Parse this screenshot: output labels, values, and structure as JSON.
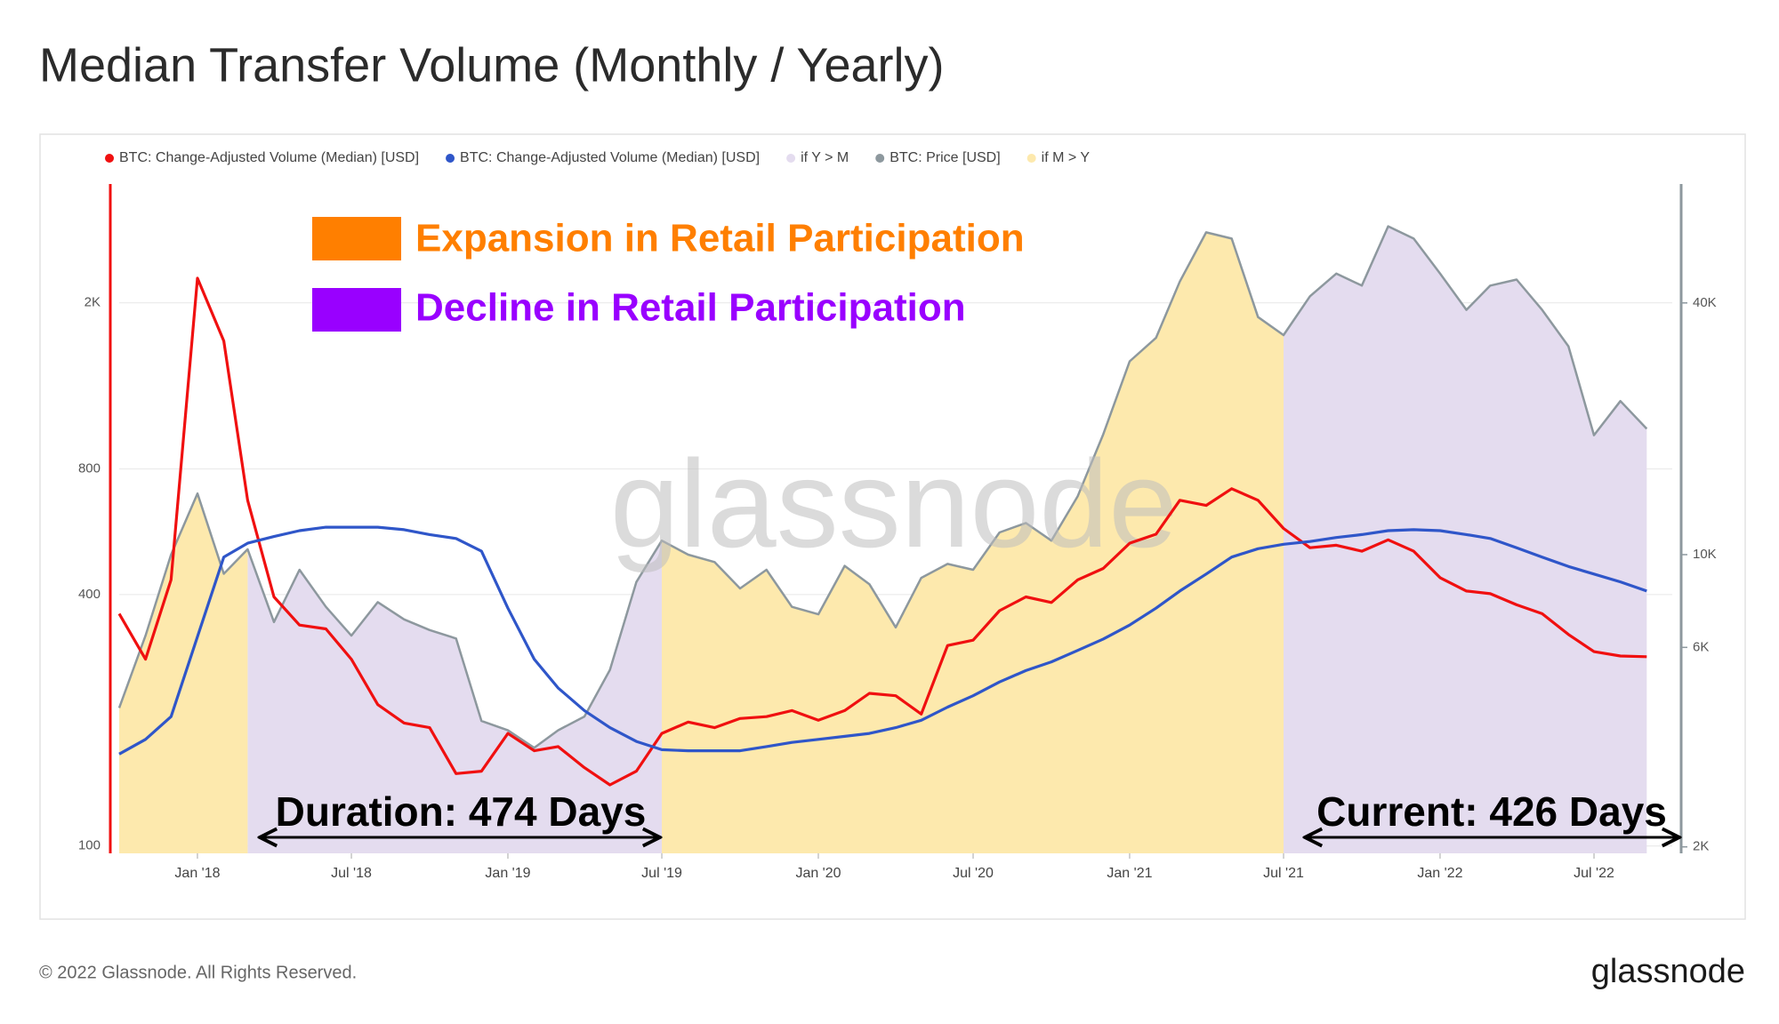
{
  "title": "Median Transfer Volume (Monthly / Yearly)",
  "footer": {
    "copyright": "© 2022 Glassnode. All Rights Reserved.",
    "logo": "glassnode"
  },
  "chart_data": {
    "type": "line",
    "watermark": "glassnode",
    "log": true,
    "grid": true,
    "x": [
      "2017-10",
      "2017-11",
      "2017-12",
      "2018-01",
      "2018-02",
      "2018-03",
      "2018-04",
      "2018-05",
      "2018-06",
      "2018-07",
      "2018-08",
      "2018-09",
      "2018-10",
      "2018-11",
      "2018-12",
      "2019-01",
      "2019-02",
      "2019-03",
      "2019-04",
      "2019-05",
      "2019-06",
      "2019-07",
      "2019-08",
      "2019-09",
      "2019-10",
      "2019-11",
      "2019-12",
      "2020-01",
      "2020-02",
      "2020-03",
      "2020-04",
      "2020-05",
      "2020-06",
      "2020-07",
      "2020-08",
      "2020-09",
      "2020-10",
      "2020-11",
      "2020-12",
      "2021-01",
      "2021-02",
      "2021-03",
      "2021-04",
      "2021-05",
      "2021-06",
      "2021-07",
      "2021-08",
      "2021-09",
      "2021-10",
      "2021-11",
      "2021-12",
      "2022-01",
      "2022-02",
      "2022-03",
      "2022-04",
      "2022-05",
      "2022-06",
      "2022-07",
      "2022-08",
      "2022-09"
    ],
    "xlim": [
      "2017-10",
      "2022-10"
    ],
    "xticks": [
      {
        "value": "2018-01",
        "label": "Jan '18"
      },
      {
        "value": "2018-07",
        "label": "Jul '18"
      },
      {
        "value": "2019-01",
        "label": "Jan '19"
      },
      {
        "value": "2019-07",
        "label": "Jul '19"
      },
      {
        "value": "2020-01",
        "label": "Jan '20"
      },
      {
        "value": "2020-07",
        "label": "Jul '20"
      },
      {
        "value": "2021-01",
        "label": "Jan '21"
      },
      {
        "value": "2021-07",
        "label": "Jul '21"
      },
      {
        "value": "2022-01",
        "label": "Jan '22"
      },
      {
        "value": "2022-07",
        "label": "Jul '22"
      }
    ],
    "ylim": [
      96,
      3850
    ],
    "yticks": [
      100,
      400,
      800,
      {
        "value": 2000,
        "label": "2K"
      }
    ],
    "y2lim": [
      1930,
      77000
    ],
    "y2ticks": [
      {
        "value": 2000,
        "label": "2K"
      },
      {
        "value": 6000,
        "label": "6K"
      },
      {
        "value": 10000,
        "label": "10K"
      },
      {
        "value": 40000,
        "label": "40K"
      }
    ],
    "series": [
      {
        "name": "BTC: Change-Adjusted Volume (Median) [USD]",
        "color": "#f01010",
        "type": "line",
        "values": [
          360,
          280,
          434,
          2290,
          1620,
          673,
          395,
          338,
          331,
          280,
          218,
          197,
          192,
          149,
          151,
          186,
          169,
          173,
          154,
          140,
          151,
          186,
          198,
          192,
          202,
          204,
          211,
          200,
          211,
          232,
          229,
          207,
          302,
          311,
          366,
          395,
          383,
          434,
          462,
          531,
          558,
          673,
          654,
          717,
          673,
          576,
          518,
          525,
          508,
          541,
          508,
          439,
          408,
          402,
          378,
          360,
          321,
          292,
          285,
          284
        ]
      },
      {
        "name": "BTC: Change-Adjusted Volume (Median) [USD]",
        "color": "#2f56c9",
        "type": "line",
        "values": [
          166,
          180,
          204,
          317,
          492,
          531,
          551,
          569,
          580,
          580,
          580,
          572,
          557,
          545,
          508,
          371,
          280,
          239,
          211,
          192,
          178,
          170,
          169,
          169,
          169,
          173,
          177,
          180,
          183,
          186,
          192,
          200,
          215,
          229,
          247,
          263,
          276,
          294,
          313,
          338,
          371,
          408,
          448,
          492,
          515,
          528,
          536,
          548,
          557,
          569,
          572,
          569,
          557,
          545,
          518,
          492,
          467,
          448,
          429,
          408
        ]
      },
      {
        "name": "if Y > M",
        "color": "#e4dcef",
        "type": "area",
        "axis": "y2",
        "values": [
          null,
          null,
          null,
          null,
          null,
          10300,
          6900,
          9200,
          7500,
          6400,
          7700,
          7000,
          6600,
          6300,
          4000,
          3800,
          3450,
          3800,
          4100,
          5300,
          8600,
          10800,
          null,
          null,
          null,
          null,
          null,
          null,
          null,
          null,
          null,
          null,
          null,
          null,
          null,
          null,
          null,
          null,
          null,
          null,
          null,
          null,
          null,
          null,
          null,
          33500,
          41500,
          47000,
          44000,
          61000,
          57000,
          47000,
          38500,
          44000,
          45500,
          38500,
          31500,
          19300,
          23300,
          20000
        ]
      },
      {
        "name": "BTC: Price [USD]",
        "color": "#8d989e",
        "type": "line",
        "axis": "y2",
        "values": [
          4300,
          6400,
          10000,
          14000,
          9000,
          10300,
          6900,
          9200,
          7500,
          6400,
          7700,
          7000,
          6600,
          6300,
          4000,
          3800,
          3450,
          3800,
          4100,
          5300,
          8600,
          10800,
          10000,
          9600,
          8300,
          9200,
          7500,
          7200,
          9400,
          8500,
          6700,
          8800,
          9500,
          9200,
          11300,
          11900,
          10800,
          13800,
          19400,
          29000,
          33000,
          45000,
          59000,
          57000,
          37000,
          33500,
          41500,
          47000,
          44000,
          61000,
          57000,
          47000,
          38500,
          44000,
          45500,
          38500,
          31500,
          19300,
          23300,
          20000
        ]
      },
      {
        "name": "if M > Y",
        "color": "#fde9ad",
        "type": "area",
        "axis": "y2",
        "values": [
          4300,
          6400,
          10000,
          14000,
          9000,
          10300,
          null,
          null,
          null,
          null,
          null,
          null,
          null,
          null,
          null,
          null,
          null,
          null,
          null,
          null,
          null,
          10800,
          10000,
          9600,
          8300,
          9200,
          7500,
          7200,
          9400,
          8500,
          6700,
          8800,
          9500,
          9200,
          11300,
          11900,
          10800,
          13800,
          19400,
          29000,
          33000,
          45000,
          59000,
          57000,
          37000,
          33500,
          null,
          null,
          null,
          null,
          null,
          null,
          null,
          null,
          null,
          null,
          null,
          null,
          null,
          null
        ]
      }
    ],
    "annotations": [
      {
        "text": "Expansion in Retail Participation",
        "color": "#ff7f00"
      },
      {
        "text": "Decline in Retail Participation",
        "color": "#9900ff"
      },
      {
        "text": "Duration: 474 Days"
      },
      {
        "text": "Current: 426 Days"
      }
    ]
  }
}
